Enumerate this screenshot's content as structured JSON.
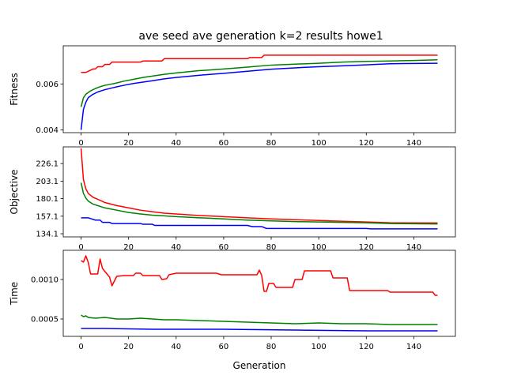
{
  "title": "ave seed ave generation k=2 results howe1",
  "xlabel": "Generation",
  "colors": {
    "red": "#ff0000",
    "green": "#008000",
    "blue": "#0000ff"
  },
  "chart_data": [
    {
      "type": "line",
      "ylabel": "Fitness",
      "xlim": [
        -7.5,
        157.5
      ],
      "ylim": [
        0.00388,
        0.00766
      ],
      "xticks": [
        0,
        20,
        40,
        60,
        80,
        100,
        120,
        140
      ],
      "xtick_labels": [
        "0",
        "20",
        "40",
        "60",
        "80",
        "100",
        "120",
        "140"
      ],
      "yticks": [
        0.004,
        0.006
      ],
      "ytick_labels": [
        "0.004",
        "0.006"
      ],
      "series": [
        {
          "color": "red",
          "points": [
            [
              0,
              0.0065
            ],
            [
              2,
              0.0065
            ],
            [
              3,
              0.00655
            ],
            [
              5,
              0.00665
            ],
            [
              6,
              0.00665
            ],
            [
              7,
              0.00675
            ],
            [
              9,
              0.00675
            ],
            [
              10,
              0.00685
            ],
            [
              12,
              0.00685
            ],
            [
              13,
              0.00695
            ],
            [
              25,
              0.00695
            ],
            [
              26,
              0.007
            ],
            [
              34,
              0.007
            ],
            [
              35,
              0.0071
            ],
            [
              70,
              0.0071
            ],
            [
              71,
              0.00715
            ],
            [
              76,
              0.00715
            ],
            [
              77,
              0.00725
            ],
            [
              150,
              0.00725
            ]
          ]
        },
        {
          "color": "green",
          "points": [
            [
              0,
              0.005
            ],
            [
              1,
              0.0054
            ],
            [
              2,
              0.00555
            ],
            [
              4,
              0.0057
            ],
            [
              6,
              0.0058
            ],
            [
              8,
              0.00588
            ],
            [
              10,
              0.00594
            ],
            [
              14,
              0.00602
            ],
            [
              18,
              0.00612
            ],
            [
              22,
              0.0062
            ],
            [
              26,
              0.00628
            ],
            [
              30,
              0.00634
            ],
            [
              35,
              0.00642
            ],
            [
              40,
              0.00648
            ],
            [
              50,
              0.00658
            ],
            [
              60,
              0.00665
            ],
            [
              70,
              0.00673
            ],
            [
              80,
              0.00682
            ],
            [
              90,
              0.00686
            ],
            [
              100,
              0.0069
            ],
            [
              110,
              0.00695
            ],
            [
              120,
              0.00698
            ],
            [
              130,
              0.007
            ],
            [
              140,
              0.00702
            ],
            [
              150,
              0.00705
            ]
          ]
        },
        {
          "color": "blue",
          "points": [
            [
              0,
              0.004
            ],
            [
              1,
              0.0049
            ],
            [
              2,
              0.0052
            ],
            [
              3,
              0.0054
            ],
            [
              5,
              0.00555
            ],
            [
              7,
              0.00565
            ],
            [
              10,
              0.00575
            ],
            [
              14,
              0.00585
            ],
            [
              18,
              0.00594
            ],
            [
              22,
              0.00602
            ],
            [
              26,
              0.00608
            ],
            [
              30,
              0.00614
            ],
            [
              35,
              0.00622
            ],
            [
              40,
              0.00628
            ],
            [
              50,
              0.00638
            ],
            [
              60,
              0.00646
            ],
            [
              70,
              0.00655
            ],
            [
              80,
              0.00664
            ],
            [
              90,
              0.0067
            ],
            [
              100,
              0.00675
            ],
            [
              110,
              0.00679
            ],
            [
              120,
              0.00683
            ],
            [
              130,
              0.00688
            ],
            [
              150,
              0.0069
            ]
          ]
        }
      ]
    },
    {
      "type": "line",
      "ylabel": "Objective",
      "xlim": [
        -7.5,
        157.5
      ],
      "ylim": [
        130.0,
        248.0
      ],
      "xticks": [
        0,
        20,
        40,
        60,
        80,
        100,
        120,
        140
      ],
      "xtick_labels": [
        "0",
        "20",
        "40",
        "60",
        "80",
        "100",
        "120",
        "140"
      ],
      "yticks": [
        134.1,
        157.1,
        180.1,
        203.1,
        226.1
      ],
      "ytick_labels": [
        "134.1",
        "157.1",
        "180.1",
        "203.1",
        "226.1"
      ],
      "series": [
        {
          "color": "red",
          "points": [
            [
              0,
              246
            ],
            [
              1,
              205
            ],
            [
              2,
              193
            ],
            [
              3,
              187
            ],
            [
              5,
              182
            ],
            [
              8,
              178
            ],
            [
              10,
              175
            ],
            [
              15,
              171
            ],
            [
              20,
              168
            ],
            [
              25,
              165
            ],
            [
              30,
              163
            ],
            [
              35,
              161
            ],
            [
              40,
              160
            ],
            [
              50,
              158
            ],
            [
              60,
              156.5
            ],
            [
              70,
              155
            ],
            [
              80,
              153.5
            ],
            [
              90,
              152.5
            ],
            [
              100,
              151.5
            ],
            [
              110,
              150.5
            ],
            [
              120,
              149.5
            ],
            [
              130,
              148.5
            ],
            [
              150,
              148.2
            ]
          ]
        },
        {
          "color": "green",
          "points": [
            [
              0,
              201
            ],
            [
              1,
              187
            ],
            [
              2,
              181
            ],
            [
              3,
              177
            ],
            [
              5,
              173
            ],
            [
              8,
              170
            ],
            [
              10,
              168
            ],
            [
              15,
              165
            ],
            [
              20,
              162
            ],
            [
              25,
              160
            ],
            [
              30,
              158.5
            ],
            [
              35,
              157.5
            ],
            [
              40,
              156.5
            ],
            [
              50,
              155
            ],
            [
              60,
              153.5
            ],
            [
              70,
              152
            ],
            [
              80,
              151
            ],
            [
              90,
              150
            ],
            [
              100,
              149.5
            ],
            [
              110,
              149
            ],
            [
              120,
              148.5
            ],
            [
              130,
              147.5
            ],
            [
              150,
              147
            ]
          ]
        },
        {
          "color": "blue",
          "points": [
            [
              0,
              155
            ],
            [
              3,
              155
            ],
            [
              4,
              154
            ],
            [
              6,
              152
            ],
            [
              8,
              152
            ],
            [
              9,
              149
            ],
            [
              12,
              149
            ],
            [
              13,
              147.5
            ],
            [
              25,
              147.5
            ],
            [
              26,
              146.5
            ],
            [
              30,
              146.5
            ],
            [
              31,
              145
            ],
            [
              70,
              145
            ],
            [
              72,
              143.5
            ],
            [
              76,
              143.5
            ],
            [
              78,
              141
            ],
            [
              120,
              141
            ],
            [
              122,
              140.5
            ],
            [
              150,
              140.5
            ]
          ]
        }
      ]
    },
    {
      "type": "line",
      "ylabel": "Time",
      "xlim": [
        -7.5,
        157.5
      ],
      "ylim": [
        0.00028,
        0.00137
      ],
      "xticks": [
        0,
        20,
        40,
        60,
        80,
        100,
        120,
        140
      ],
      "xtick_labels": [
        "0",
        "20",
        "40",
        "60",
        "80",
        "100",
        "120",
        "140"
      ],
      "yticks": [
        0.0005,
        0.001
      ],
      "ytick_labels": [
        "0.0005",
        "0.0010"
      ],
      "series": [
        {
          "color": "red",
          "points": [
            [
              0,
              0.00124
            ],
            [
              1,
              0.00122
            ],
            [
              2,
              0.0013
            ],
            [
              3,
              0.00122
            ],
            [
              4,
              0.00107
            ],
            [
              7,
              0.00107
            ],
            [
              8,
              0.00126
            ],
            [
              9,
              0.00114
            ],
            [
              12,
              0.00103
            ],
            [
              13,
              0.00092
            ],
            [
              15,
              0.00104
            ],
            [
              18,
              0.00105
            ],
            [
              22,
              0.00105
            ],
            [
              23,
              0.00108
            ],
            [
              25,
              0.00108
            ],
            [
              26,
              0.00105
            ],
            [
              33,
              0.00105
            ],
            [
              34,
              0.001
            ],
            [
              36,
              0.00101
            ],
            [
              37,
              0.00106
            ],
            [
              40,
              0.00108
            ],
            [
              57,
              0.00108
            ],
            [
              59,
              0.00106
            ],
            [
              74,
              0.00106
            ],
            [
              75,
              0.00112
            ],
            [
              76,
              0.00105
            ],
            [
              77,
              0.00085
            ],
            [
              78,
              0.00085
            ],
            [
              79,
              0.00095
            ],
            [
              81,
              0.00095
            ],
            [
              82,
              0.0009
            ],
            [
              89,
              0.0009
            ],
            [
              90,
              0.001
            ],
            [
              93,
              0.001
            ],
            [
              94,
              0.00111
            ],
            [
              105,
              0.00111
            ],
            [
              106,
              0.00102
            ],
            [
              112,
              0.00102
            ],
            [
              113,
              0.00086
            ],
            [
              129,
              0.00086
            ],
            [
              130,
              0.00084
            ],
            [
              148,
              0.00084
            ],
            [
              149,
              0.0008
            ],
            [
              150,
              0.0008
            ]
          ]
        },
        {
          "color": "green",
          "points": [
            [
              0,
              0.00055
            ],
            [
              1,
              0.00053
            ],
            [
              2,
              0.00054
            ],
            [
              3,
              0.00052
            ],
            [
              6,
              0.00051
            ],
            [
              10,
              0.00052
            ],
            [
              15,
              0.0005
            ],
            [
              20,
              0.0005
            ],
            [
              25,
              0.00051
            ],
            [
              30,
              0.0005
            ],
            [
              35,
              0.00049
            ],
            [
              40,
              0.00049
            ],
            [
              50,
              0.00048
            ],
            [
              60,
              0.00047
            ],
            [
              70,
              0.00046
            ],
            [
              80,
              0.00045
            ],
            [
              90,
              0.00044
            ],
            [
              100,
              0.00045
            ],
            [
              110,
              0.00044
            ],
            [
              120,
              0.00044
            ],
            [
              130,
              0.00043
            ],
            [
              150,
              0.00043
            ]
          ]
        },
        {
          "color": "blue",
          "points": [
            [
              0,
              0.00038
            ],
            [
              10,
              0.00038
            ],
            [
              30,
              0.00037
            ],
            [
              60,
              0.00037
            ],
            [
              90,
              0.00036
            ],
            [
              120,
              0.00035
            ],
            [
              150,
              0.00035
            ]
          ]
        }
      ]
    }
  ]
}
